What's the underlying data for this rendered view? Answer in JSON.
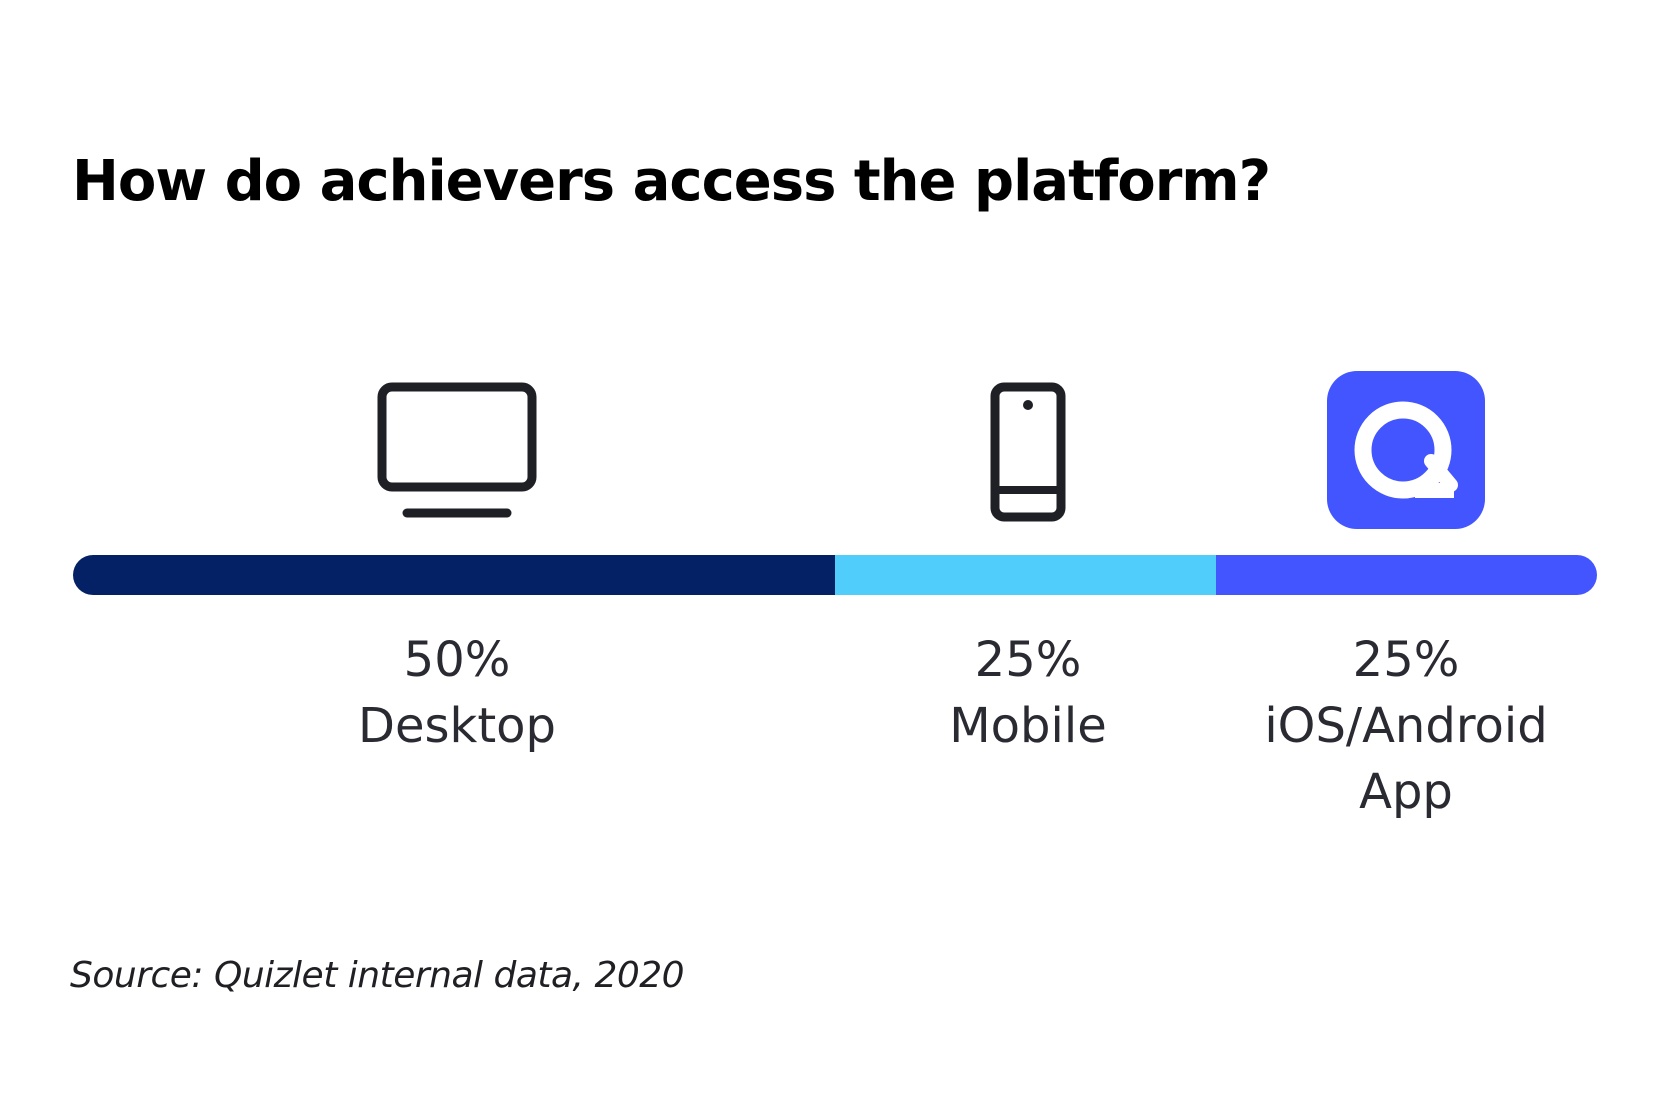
{
  "chart_data": {
    "type": "bar",
    "orientation": "horizontal-stacked",
    "title": "How do achievers access the platform?",
    "unit": "%",
    "categories": [
      "Desktop",
      "Mobile",
      "iOS/Android App"
    ],
    "values": [
      50,
      25,
      25
    ],
    "value_labels": [
      "50%",
      "25%",
      "25%"
    ],
    "category_labels": [
      "Desktop",
      "Mobile",
      "iOS/Android\nApp"
    ],
    "colors": [
      "#042166",
      "#51cdfb",
      "#4255ff"
    ],
    "icons": [
      "desktop-monitor-icon",
      "mobile-phone-icon",
      "quizlet-app-icon"
    ],
    "grid": false,
    "legend": "none"
  },
  "source": "Source: Quizlet internal data, 2020"
}
